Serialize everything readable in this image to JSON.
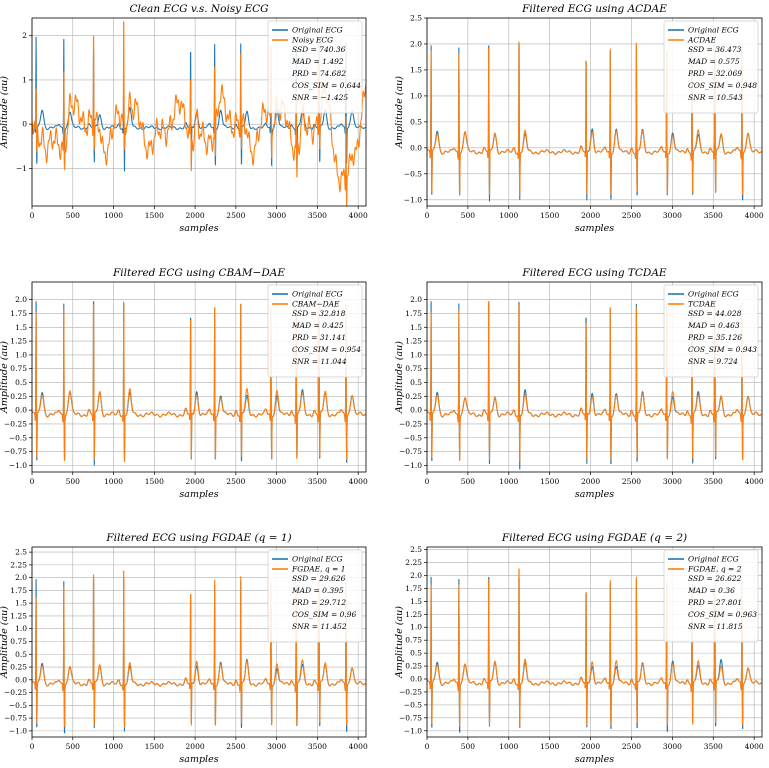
{
  "colors": {
    "original": "#1f77b4",
    "filtered": "#ff7f0e",
    "grid": "#b0b0b0"
  },
  "chart_data": [
    {
      "type": "line",
      "title": "Clean ECG v.s. Noisy ECG",
      "xlabel": "samples",
      "ylabel": "Amplitude (au)",
      "xlim": [
        0,
        4096
      ],
      "ylim": [
        -1.85,
        2.4
      ],
      "xticks": [
        0,
        500,
        1000,
        1500,
        2000,
        2500,
        3000,
        3500,
        4000
      ],
      "yticks": [
        -1,
        0,
        1,
        2
      ],
      "legend_position": "top-right",
      "grid": true,
      "series": [
        {
          "name": "Original ECG",
          "color": "#1f77b4",
          "r_peaks": [
            50,
            390,
            755,
            1125,
            1945,
            2240,
            2560,
            2930,
            3240,
            3520,
            3850
          ],
          "r_heights": [
            2.05,
            2.05,
            1.9,
            1.9,
            1.85,
            1.9,
            1.9,
            1.85,
            1.9,
            1.9,
            1.95
          ]
        },
        {
          "name": "Noisy ECG",
          "color": "#ff7f0e",
          "r_peaks": [
            50,
            390,
            755,
            1125,
            1945,
            2240,
            2560,
            2930,
            3240,
            3520,
            3850
          ],
          "r_heights": [
            1.0,
            1.85,
            2.65,
            2.7,
            1.7,
            1.75,
            1.8,
            1.8,
            1.75,
            1.8,
            1.85
          ]
        }
      ],
      "metrics": [
        {
          "name": "SSD",
          "value": "740.36"
        },
        {
          "name": "MAD",
          "value": "1.492"
        },
        {
          "name": "PRD",
          "value": "74.682"
        },
        {
          "name": "COS_SIM",
          "value": "0.644"
        },
        {
          "name": "SNR",
          "value": "−1.425"
        }
      ]
    },
    {
      "type": "line",
      "title": "Filtered ECG using ACDAE",
      "xlabel": "samples",
      "ylabel": "Amplitude (au)",
      "xlim": [
        0,
        4096
      ],
      "ylim": [
        -1.12,
        2.5
      ],
      "xticks": [
        0,
        500,
        1000,
        1500,
        2000,
        2500,
        3000,
        3500,
        4000
      ],
      "yticks": [
        -1.0,
        -0.5,
        0.0,
        0.5,
        1.0,
        1.5,
        2.0,
        2.5
      ],
      "legend_position": "top-right",
      "grid": true,
      "series": [
        {
          "name": "Original ECG",
          "color": "#1f77b4",
          "r_peaks": [
            50,
            390,
            755,
            1125,
            1945,
            2240,
            2560,
            2930,
            3240,
            3520,
            3850
          ],
          "r_heights": [
            2.05,
            2.05,
            2.25,
            2.3,
            1.9,
            1.95,
            2.05,
            1.95,
            1.95,
            2.0,
            2.05
          ]
        },
        {
          "name": "ACDAE",
          "color": "#ff7f0e",
          "r_peaks": [
            50,
            390,
            755,
            1125,
            1945,
            2240,
            2560,
            2930,
            3240,
            3520,
            3850
          ],
          "r_heights": [
            1.95,
            1.95,
            2.2,
            2.35,
            1.9,
            2.0,
            2.1,
            1.95,
            1.95,
            2.05,
            2.1
          ]
        }
      ],
      "metrics": [
        {
          "name": "SSD",
          "value": "36.473"
        },
        {
          "name": "MAD",
          "value": "0.575"
        },
        {
          "name": "PRD",
          "value": "32.069"
        },
        {
          "name": "COS_SIM",
          "value": "0.948"
        },
        {
          "name": "SNR",
          "value": "10.543"
        }
      ]
    },
    {
      "type": "line",
      "title": "Filtered ECG using CBAM−DAE",
      "xlabel": "samples",
      "ylabel": "Amplitude (au)",
      "xlim": [
        0,
        4096
      ],
      "ylim": [
        -1.12,
        2.32
      ],
      "xticks": [
        0,
        500,
        1000,
        1500,
        2000,
        2500,
        3000,
        3500,
        4000
      ],
      "yticks": [
        -1.0,
        -0.75,
        -0.5,
        -0.25,
        0.0,
        0.25,
        0.5,
        0.75,
        1.0,
        1.25,
        1.5,
        1.75,
        2.0
      ],
      "legend_position": "top-right",
      "grid": true,
      "series": [
        {
          "name": "Original ECG",
          "color": "#1f77b4",
          "r_peaks": [
            50,
            390,
            755,
            1125,
            1945,
            2240,
            2560,
            2930,
            3240,
            3520,
            3850
          ],
          "r_heights": [
            2.05,
            2.05,
            2.25,
            2.25,
            1.9,
            1.95,
            2.0,
            1.95,
            1.95,
            2.0,
            2.05
          ]
        },
        {
          "name": "CBAM−DAE",
          "color": "#ff7f0e",
          "r_peaks": [
            50,
            390,
            755,
            1125,
            1945,
            2240,
            2560,
            2930,
            3240,
            3520,
            3850
          ],
          "r_heights": [
            1.85,
            1.95,
            2.2,
            2.25,
            1.85,
            1.95,
            2.0,
            1.95,
            1.95,
            2.0,
            2.05
          ]
        }
      ],
      "metrics": [
        {
          "name": "SSD",
          "value": "32.818"
        },
        {
          "name": "MAD",
          "value": "0.425"
        },
        {
          "name": "PRD",
          "value": "31.141"
        },
        {
          "name": "COS_SIM",
          "value": "0.954"
        },
        {
          "name": "SNR",
          "value": "11.044"
        }
      ]
    },
    {
      "type": "line",
      "title": "Filtered ECG using TCDAE",
      "xlabel": "samples",
      "ylabel": "Amplitude (au)",
      "xlim": [
        0,
        4096
      ],
      "ylim": [
        -1.12,
        2.32
      ],
      "xticks": [
        0,
        500,
        1000,
        1500,
        2000,
        2500,
        3000,
        3500,
        4000
      ],
      "yticks": [
        -1.0,
        -0.75,
        -0.5,
        -0.25,
        0.0,
        0.25,
        0.5,
        0.75,
        1.0,
        1.25,
        1.5,
        1.75,
        2.0
      ],
      "legend_position": "top-right",
      "grid": true,
      "series": [
        {
          "name": "Original ECG",
          "color": "#1f77b4",
          "r_peaks": [
            50,
            390,
            755,
            1125,
            1945,
            2240,
            2560,
            2930,
            3240,
            3520,
            3850
          ],
          "r_heights": [
            2.05,
            2.05,
            2.25,
            2.25,
            1.9,
            1.95,
            2.0,
            1.95,
            1.95,
            2.0,
            2.05
          ]
        },
        {
          "name": "TCDAE",
          "color": "#ff7f0e",
          "r_peaks": [
            50,
            390,
            755,
            1125,
            1945,
            2240,
            2560,
            2930,
            3240,
            3520,
            3850
          ],
          "r_heights": [
            1.85,
            1.95,
            2.25,
            2.2,
            1.8,
            1.95,
            1.95,
            1.9,
            1.95,
            2.0,
            2.05
          ]
        }
      ],
      "metrics": [
        {
          "name": "SSD",
          "value": "44.028"
        },
        {
          "name": "MAD",
          "value": "0.463"
        },
        {
          "name": "PRD",
          "value": "35.126"
        },
        {
          "name": "COS_SIM",
          "value": "0.943"
        },
        {
          "name": "SNR",
          "value": "9.724"
        }
      ]
    },
    {
      "type": "line",
      "title": "Filtered ECG using FGDAE (q = 1)",
      "xlabel": "samples",
      "ylabel": "Amplitude (au)",
      "xlim": [
        0,
        4096
      ],
      "ylim": [
        -1.12,
        2.6
      ],
      "xticks": [
        0,
        500,
        1000,
        1500,
        2000,
        2500,
        3000,
        3500,
        4000
      ],
      "yticks": [
        -1.0,
        -0.75,
        -0.5,
        -0.25,
        0.0,
        0.25,
        0.5,
        0.75,
        1.0,
        1.25,
        1.5,
        1.75,
        2.0,
        2.25,
        2.5
      ],
      "legend_position": "top-right",
      "grid": true,
      "series": [
        {
          "name": "Original ECG",
          "color": "#1f77b4",
          "r_peaks": [
            50,
            390,
            755,
            1125,
            1945,
            2240,
            2560,
            2930,
            3240,
            3520,
            3850
          ],
          "r_heights": [
            2.05,
            2.05,
            2.25,
            2.25,
            1.9,
            1.95,
            2.0,
            1.95,
            1.95,
            2.0,
            2.05
          ]
        },
        {
          "name": "FGDAE, q = 1",
          "color": "#ff7f0e",
          "r_peaks": [
            50,
            390,
            755,
            1125,
            1945,
            2240,
            2560,
            2930,
            3240,
            3520,
            3850
          ],
          "r_heights": [
            1.7,
            1.95,
            2.35,
            2.45,
            1.9,
            2.05,
            2.1,
            2.0,
            2.0,
            2.05,
            2.1
          ]
        }
      ],
      "metrics": [
        {
          "name": "SSD",
          "value": "29.626"
        },
        {
          "name": "MAD",
          "value": "0.395"
        },
        {
          "name": "PRD",
          "value": "29.712"
        },
        {
          "name": "COS_SIM",
          "value": "0.96"
        },
        {
          "name": "SNR",
          "value": "11.452"
        }
      ]
    },
    {
      "type": "line",
      "title": "Filtered ECG using FGDAE (q = 2)",
      "xlabel": "samples",
      "ylabel": "Amplitude (au)",
      "xlim": [
        0,
        4096
      ],
      "ylim": [
        -1.12,
        2.55
      ],
      "xticks": [
        0,
        500,
        1000,
        1500,
        2000,
        2500,
        3000,
        3500,
        4000
      ],
      "yticks": [
        -1.0,
        -0.75,
        -0.5,
        -0.25,
        0.0,
        0.25,
        0.5,
        0.75,
        1.0,
        1.25,
        1.5,
        1.75,
        2.0,
        2.25,
        2.5
      ],
      "legend_position": "top-right",
      "grid": true,
      "series": [
        {
          "name": "Original ECG",
          "color": "#1f77b4",
          "r_peaks": [
            50,
            390,
            755,
            1125,
            1945,
            2240,
            2560,
            2930,
            3240,
            3520,
            3850
          ],
          "r_heights": [
            2.05,
            2.05,
            2.25,
            2.25,
            1.9,
            1.95,
            2.0,
            1.95,
            1.95,
            2.0,
            2.05
          ]
        },
        {
          "name": "FGDAE, q = 2",
          "color": "#ff7f0e",
          "r_peaks": [
            50,
            390,
            755,
            1125,
            1945,
            2240,
            2560,
            2930,
            3240,
            3520,
            3850
          ],
          "r_heights": [
            1.9,
            1.95,
            2.2,
            2.45,
            1.9,
            2.0,
            2.05,
            1.95,
            1.95,
            2.0,
            2.05
          ]
        }
      ],
      "metrics": [
        {
          "name": "SSD",
          "value": "26.622"
        },
        {
          "name": "MAD",
          "value": "0.36"
        },
        {
          "name": "PRD",
          "value": "27.801"
        },
        {
          "name": "COS_SIM",
          "value": "0.963"
        },
        {
          "name": "SNR",
          "value": "11.815"
        }
      ]
    }
  ]
}
